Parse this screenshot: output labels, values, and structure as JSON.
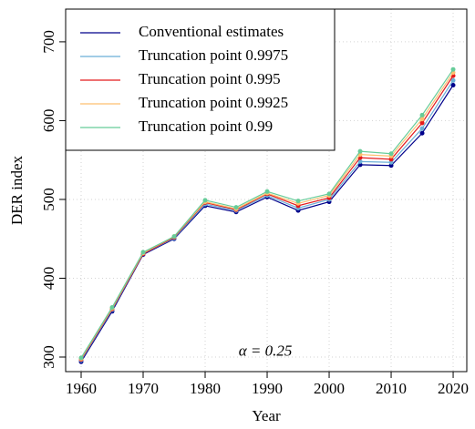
{
  "chart_data": {
    "type": "line",
    "x_label": "Year",
    "y_label": "DER index",
    "annotation": "α = 0.25",
    "x": [
      1960,
      1965,
      1970,
      1975,
      1980,
      1985,
      1990,
      1995,
      2000,
      2005,
      2010,
      2015,
      2020
    ],
    "series": [
      {
        "name": "Conventional estimates",
        "color": "#00008b",
        "values": [
          294,
          358,
          430,
          450,
          492,
          484,
          503,
          486,
          497,
          544,
          543,
          584,
          645
        ]
      },
      {
        "name": "Truncation point 0.9975",
        "color": "#6baed6",
        "values": [
          296,
          360,
          431,
          451,
          494,
          486,
          505,
          489,
          500,
          548,
          547,
          590,
          651
        ]
      },
      {
        "name": "Truncation point 0.995",
        "color": "#e41a1c",
        "values": [
          297,
          361,
          431,
          452,
          496,
          487,
          507,
          492,
          502,
          553,
          551,
          597,
          657
        ]
      },
      {
        "name": "Truncation point 0.9925",
        "color": "#fdbf6f",
        "values": [
          298,
          362,
          432,
          453,
          497,
          488,
          508,
          495,
          505,
          557,
          555,
          602,
          661
        ]
      },
      {
        "name": "Truncation point 0.99",
        "color": "#66cc99",
        "values": [
          299,
          363,
          433,
          453,
          499,
          490,
          510,
          498,
          507,
          561,
          558,
          607,
          665
        ]
      }
    ],
    "xlim": [
      1957.5,
      2022.2
    ],
    "ylim": [
      281.5,
      741.5
    ],
    "xticks": [
      1960,
      1970,
      1980,
      1990,
      2000,
      2010,
      2020
    ],
    "yticks": [
      300,
      400,
      500,
      600,
      700
    ],
    "grid": true,
    "legend": "top-left"
  }
}
